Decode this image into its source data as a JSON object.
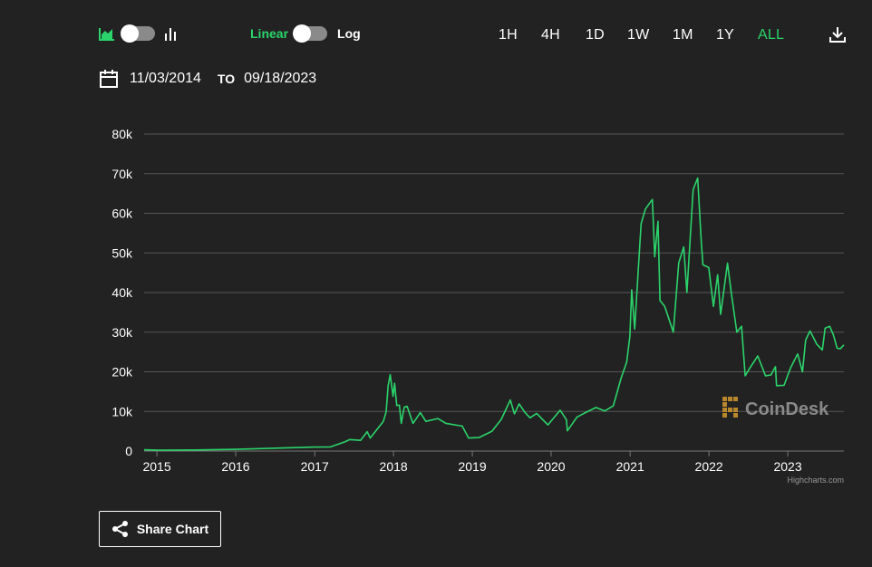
{
  "toolbar": {
    "chart_type_icons": [
      "area-chart-icon",
      "bar-chart-icon"
    ],
    "scale_linear_label": "Linear",
    "scale_log_label": "Log",
    "ranges": [
      "1H",
      "4H",
      "1D",
      "1W",
      "1M",
      "1Y",
      "ALL"
    ],
    "active_range": "ALL",
    "download_icon": "download-icon"
  },
  "date_range": {
    "calendar_icon": "calendar-icon",
    "from": "11/03/2014",
    "to_label": "TO",
    "to": "09/18/2023"
  },
  "watermark": {
    "text": "CoinDesk",
    "credit": "Highcharts.com"
  },
  "share": {
    "label": "Share Chart",
    "icon": "share-icon"
  },
  "colors": {
    "background": "#222222",
    "line": "#2bd46b",
    "accent": "#2bd46b",
    "grid": "#555555"
  },
  "chart_data": {
    "type": "line",
    "title": "",
    "xlabel": "",
    "ylabel": "",
    "ylim": [
      0,
      80000
    ],
    "xlim": [
      "2014-11-03",
      "2023-09-18"
    ],
    "y_ticks": [
      0,
      10000,
      20000,
      30000,
      40000,
      50000,
      60000,
      70000,
      80000
    ],
    "y_tick_labels": [
      "0",
      "10k",
      "20k",
      "30k",
      "40k",
      "50k",
      "60k",
      "70k",
      "80k"
    ],
    "x_ticks": [
      "2015-01-01",
      "2016-01-01",
      "2017-01-01",
      "2018-01-01",
      "2019-01-01",
      "2020-01-01",
      "2021-01-01",
      "2022-01-01",
      "2023-01-01"
    ],
    "x_tick_labels": [
      "2015",
      "2016",
      "2017",
      "2018",
      "2019",
      "2020",
      "2021",
      "2022",
      "2023"
    ],
    "grid": true,
    "legend": "none",
    "series": [
      {
        "x": [
          "2014-11-03",
          "2015-01-15",
          "2015-07-01",
          "2015-11-05",
          "2016-01-01",
          "2016-06-15",
          "2017-01-01",
          "2017-03-15",
          "2017-05-20",
          "2017-06-12",
          "2017-08-01",
          "2017-09-01",
          "2017-09-15",
          "2017-10-20",
          "2017-11-15",
          "2017-11-28",
          "2017-12-07",
          "2017-12-17",
          "2017-12-30",
          "2018-01-06",
          "2018-01-16",
          "2018-01-28",
          "2018-02-06",
          "2018-02-20",
          "2018-03-05",
          "2018-04-01",
          "2018-05-05",
          "2018-05-31",
          "2018-07-25",
          "2018-09-01",
          "2018-11-15",
          "2018-12-15",
          "2019-02-01",
          "2019-04-02",
          "2019-05-15",
          "2019-06-26",
          "2019-07-15",
          "2019-08-06",
          "2019-09-01",
          "2019-09-25",
          "2019-10-26",
          "2019-12-17",
          "2020-02-12",
          "2020-03-12",
          "2020-03-16",
          "2020-04-30",
          "2020-06-01",
          "2020-07-27",
          "2020-09-05",
          "2020-10-15",
          "2020-11-20",
          "2020-12-16",
          "2020-12-31",
          "2021-01-08",
          "2021-01-22",
          "2021-02-08",
          "2021-02-21",
          "2021-03-13",
          "2021-04-14",
          "2021-04-25",
          "2021-05-10",
          "2021-05-19",
          "2021-06-10",
          "2021-07-20",
          "2021-08-14",
          "2021-09-06",
          "2021-09-21",
          "2021-10-20",
          "2021-11-10",
          "2021-11-26",
          "2021-12-04",
          "2021-12-31",
          "2022-01-22",
          "2022-02-10",
          "2022-02-24",
          "2022-03-28",
          "2022-04-15",
          "2022-05-10",
          "2022-06-01",
          "2022-06-18",
          "2022-07-10",
          "2022-08-15",
          "2022-09-20",
          "2022-10-15",
          "2022-11-05",
          "2022-11-10",
          "2022-12-15",
          "2023-01-14",
          "2023-02-16",
          "2023-03-10",
          "2023-03-25",
          "2023-04-14",
          "2023-05-15",
          "2023-06-10",
          "2023-06-23",
          "2023-07-14",
          "2023-08-01",
          "2023-08-17",
          "2023-09-01",
          "2023-09-18"
        ],
        "y": [
          330,
          210,
          265,
          390,
          430,
          700,
          1000,
          1050,
          2300,
          2900,
          2700,
          4900,
          3300,
          5700,
          7500,
          9900,
          16500,
          19300,
          13800,
          17100,
          11500,
          11600,
          7000,
          11100,
          11300,
          7000,
          9700,
          7500,
          8200,
          7000,
          6300,
          3300,
          3400,
          5000,
          8000,
          12900,
          9400,
          11900,
          9800,
          8400,
          9500,
          6600,
          10300,
          7900,
          5100,
          8600,
          9500,
          11000,
          10100,
          11400,
          18400,
          22500,
          29000,
          40700,
          30800,
          46000,
          57400,
          61100,
          63500,
          49000,
          58000,
          38000,
          36500,
          30000,
          47500,
          51500,
          40000,
          66000,
          68900,
          53000,
          47000,
          46300,
          36500,
          44500,
          34500,
          47400,
          39700,
          30000,
          31500,
          19000,
          21000,
          24000,
          19000,
          19200,
          21300,
          16500,
          16600,
          21000,
          24500,
          20000,
          28000,
          30300,
          27000,
          25500,
          31000,
          31500,
          29200,
          26000,
          25800,
          26800
        ]
      }
    ]
  }
}
